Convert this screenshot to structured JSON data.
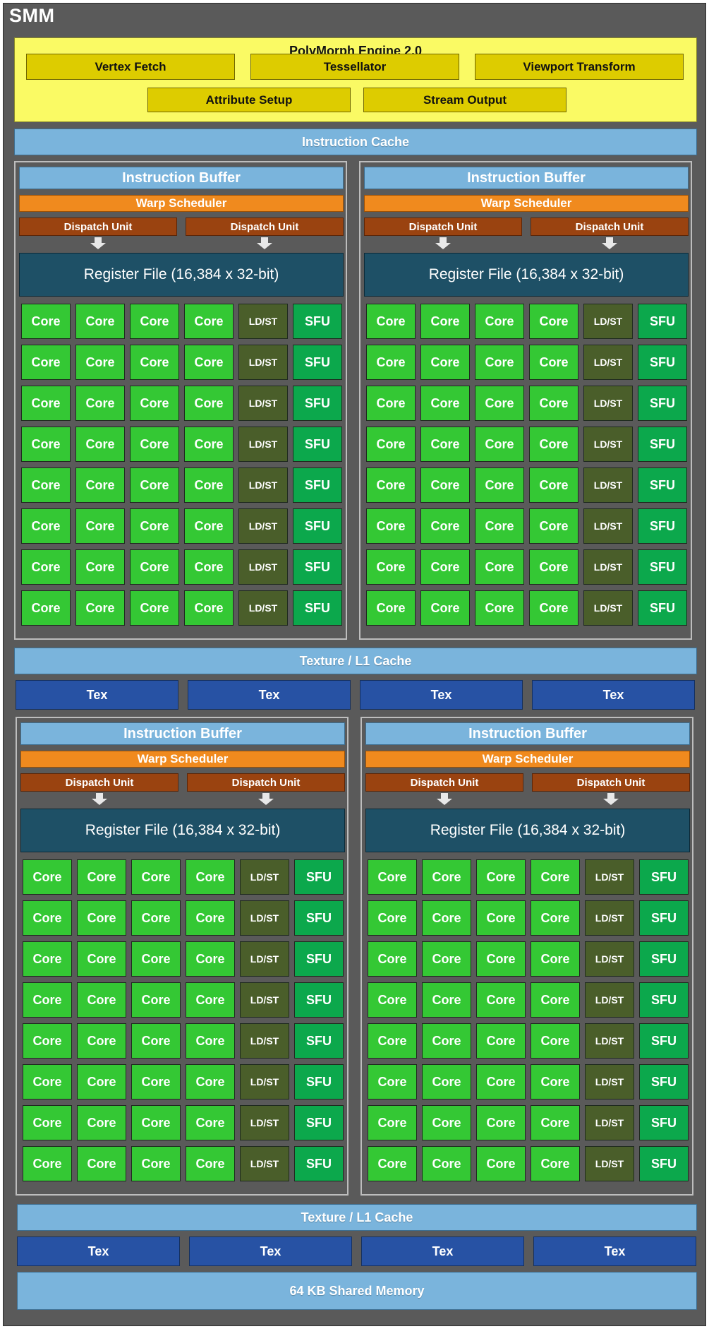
{
  "smm_title": "SMM",
  "polymorph": {
    "title": "PolyMorph Engine 2.0",
    "row1": [
      "Vertex Fetch",
      "Tessellator",
      "Viewport Transform"
    ],
    "row2": [
      "Attribute Setup",
      "Stream Output"
    ]
  },
  "instruction_cache": "Instruction Cache",
  "quadrant": {
    "instruction_buffer": "Instruction Buffer",
    "warp_scheduler": "Warp Scheduler",
    "dispatch_unit": "Dispatch Unit",
    "register_file": "Register File (16,384 x 32-bit)",
    "core_label": "Core",
    "ldst_label": "LD/ST",
    "sfu_label": "SFU",
    "rows": 8
  },
  "texture_l1_cache": "Texture / L1 Cache",
  "tex_label": "Tex",
  "shared_memory": "64 KB Shared Memory",
  "colors": {
    "background": "#5a5a5a",
    "polymorph": "#fafa64",
    "polymorph_unit": "#ddcc00",
    "cache": "#7ab4dc",
    "tex": "#2752a4",
    "warp_scheduler": "#f08a1e",
    "dispatch_unit": "#9a4310",
    "register_file": "#1e5066",
    "core": "#34c834",
    "ldst": "#4a5e2a",
    "sfu": "#0ca84c"
  }
}
